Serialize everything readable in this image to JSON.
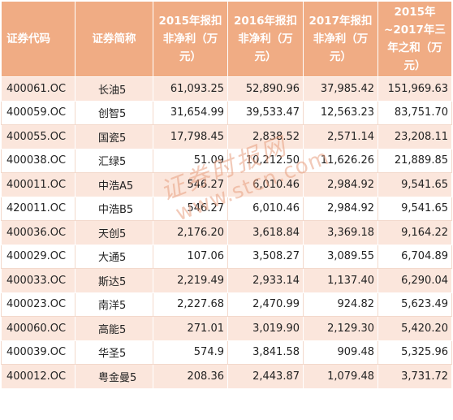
{
  "headers": {
    "code": "证券代码",
    "name": "证券简称",
    "y2015": "2015年报扣非净利（万元）",
    "y2016": "2016年报扣非净利（万元）",
    "y2017": "2017年报扣非净利（万元）",
    "sum": "2015年~2017年三年之和（万元）"
  },
  "rows": [
    {
      "code": "400061.OC",
      "name": "长油5",
      "y2015": "61,093.25",
      "y2016": "52,890.96",
      "y2017": "37,985.42",
      "sum": "151,969.63"
    },
    {
      "code": "400059.OC",
      "name": "创智5",
      "y2015": "31,654.99",
      "y2016": "39,533.47",
      "y2017": "12,563.23",
      "sum": "83,751.70"
    },
    {
      "code": "400055.OC",
      "name": "国瓷5",
      "y2015": "17,798.45",
      "y2016": "2,838.52",
      "y2017": "2,571.14",
      "sum": "23,208.11"
    },
    {
      "code": "400038.OC",
      "name": "汇绿5",
      "y2015": "51.09",
      "y2016": "10,212.50",
      "y2017": "11,626.26",
      "sum": "21,889.85"
    },
    {
      "code": "400011.OC",
      "name": "中浩A5",
      "y2015": "546.27",
      "y2016": "6,010.46",
      "y2017": "2,984.92",
      "sum": "9,541.65"
    },
    {
      "code": "420011.OC",
      "name": "中浩B5",
      "y2015": "546.27",
      "y2016": "6,010.46",
      "y2017": "2,984.92",
      "sum": "9,541.65"
    },
    {
      "code": "400036.OC",
      "name": "天创5",
      "y2015": "2,176.20",
      "y2016": "3,618.84",
      "y2017": "3,369.18",
      "sum": "9,164.22"
    },
    {
      "code": "400029.OC",
      "name": "大通5",
      "y2015": "107.06",
      "y2016": "3,508.27",
      "y2017": "3,089.55",
      "sum": "6,704.89"
    },
    {
      "code": "400033.OC",
      "name": "斯达5",
      "y2015": "2,219.49",
      "y2016": "2,933.14",
      "y2017": "1,137.40",
      "sum": "6,290.04"
    },
    {
      "code": "400023.OC",
      "name": "南洋5",
      "y2015": "2,227.68",
      "y2016": "2,470.99",
      "y2017": "924.82",
      "sum": "5,623.49"
    },
    {
      "code": "400060.OC",
      "name": "高能5",
      "y2015": "271.01",
      "y2016": "3,019.90",
      "y2017": "2,129.30",
      "sum": "5,420.20"
    },
    {
      "code": "400039.OC",
      "name": "华圣5",
      "y2015": "574.9",
      "y2016": "3,841.58",
      "y2017": "909.48",
      "sum": "5,325.96"
    },
    {
      "code": "400012.OC",
      "name": "粤金曼5",
      "y2015": "208.36",
      "y2016": "2,443.87",
      "y2017": "1,079.48",
      "sum": "3,731.72"
    }
  ],
  "watermark": {
    "brand": "证券时报网",
    "url": "www.stcn.com"
  },
  "colors": {
    "header_bg": "#f0ac84",
    "header_text": "#ffffff",
    "stripe_bg": "#fbe6dc",
    "text": "#222222"
  }
}
